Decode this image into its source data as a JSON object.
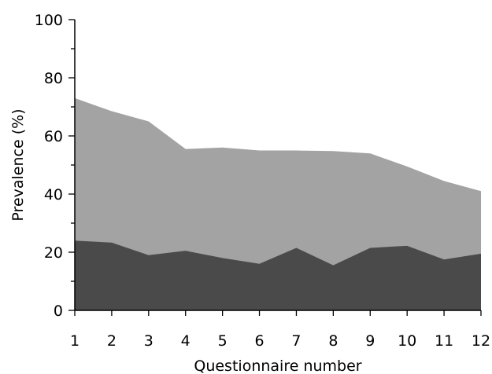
{
  "chart_data": {
    "type": "area",
    "stacked": false,
    "xlabel": "Questionnaire number",
    "ylabel": "Prevalence (%)",
    "x": [
      1,
      2,
      3,
      4,
      5,
      6,
      7,
      8,
      9,
      10,
      11,
      12
    ],
    "xlim": [
      1,
      12
    ],
    "ylim": [
      0,
      100
    ],
    "yticks": [
      0,
      20,
      40,
      60,
      80,
      100
    ],
    "grid": false,
    "legend": "none",
    "series": [
      {
        "values": [
          73,
          68.5,
          65,
          55.5,
          56,
          55,
          55,
          54.8,
          54,
          49.5,
          44.5,
          41
        ],
        "color": "#a3a3a3"
      },
      {
        "values": [
          24,
          23.3,
          19,
          20.5,
          18,
          16,
          21.5,
          15.5,
          21.5,
          22.2,
          17.5,
          19.5
        ],
        "color": "#4a4a4a"
      }
    ]
  }
}
